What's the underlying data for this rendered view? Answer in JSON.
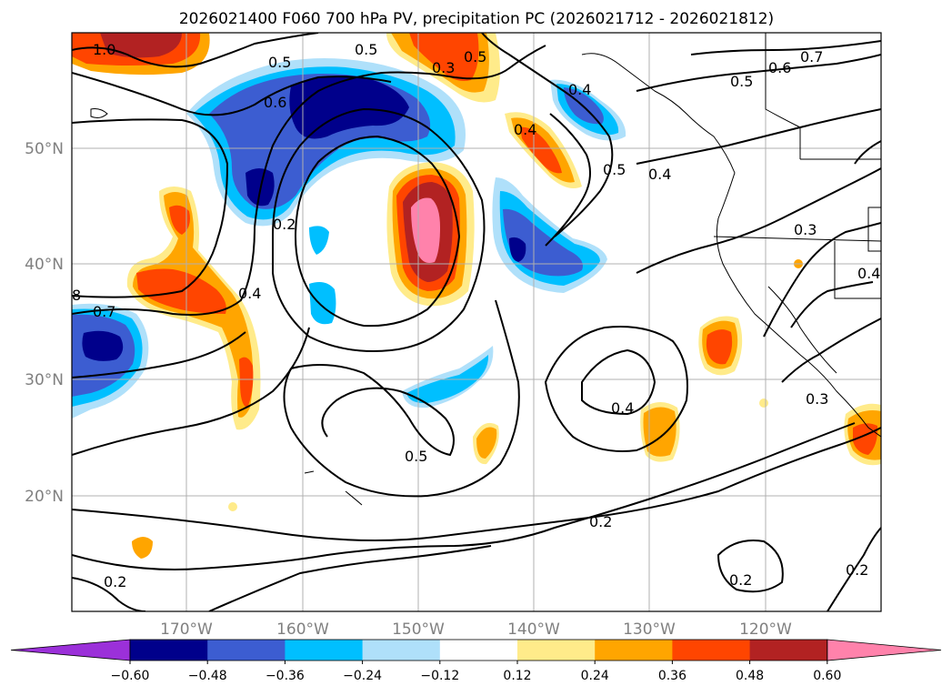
{
  "title": "2026021400 F060 700 hPa PV, precipitation PC (2026021712 - 2026021812)",
  "longitude_labels": [
    "170°W",
    "160°W",
    "150°W",
    "140°W",
    "130°W",
    "120°W"
  ],
  "latitude_labels": [
    "50°N",
    "40°N",
    "30°N",
    "20°N"
  ],
  "colorbar": {
    "ticks": [
      "−0.60",
      "−0.48",
      "−0.36",
      "−0.24",
      "−0.12",
      "0.12",
      "0.24",
      "0.36",
      "0.48",
      "0.60"
    ],
    "colors": [
      "#9b30d9",
      "#00008b",
      "#3c5dd1",
      "#00bfff",
      "#afe0fa",
      "#ffffff",
      "#ffeb8a",
      "#ffa500",
      "#ff4500",
      "#b22222",
      "#ff82ab"
    ]
  },
  "contour_labels": [
    "1.0",
    "0.5",
    "0.6",
    "0.4",
    "0.2",
    "0.3",
    "0.5",
    "0.4",
    "0.5",
    "0.4",
    "0.5",
    "0.6",
    "0.7",
    "0.5",
    "0.3",
    "0.4",
    "8",
    "0.7",
    "0.4",
    "0.5",
    "0.4",
    "0.3",
    "0.2",
    "0.2",
    "0.2",
    "0.2"
  ]
}
